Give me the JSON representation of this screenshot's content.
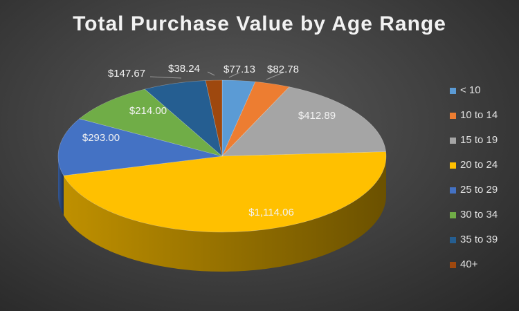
{
  "chart_data": {
    "type": "pie",
    "title": "Total Purchase Value by Age Range",
    "categories": [
      "< 10",
      "10 to 14",
      "15 to 19",
      "20 to 24",
      "25 to 29",
      "30 to 34",
      "35 to 39",
      "40+"
    ],
    "values": [
      77.13,
      82.78,
      412.89,
      1114.06,
      293.0,
      214.0,
      147.67,
      38.24
    ],
    "labels": [
      "$77.13",
      "$82.78",
      "$412.89",
      "$1,114.06",
      "$293.00",
      "$214.00",
      "$147.67",
      "$38.24"
    ],
    "colors": [
      "#5b9bd5",
      "#ed7d31",
      "#a5a5a5",
      "#ffc000",
      "#4472c4",
      "#70ad47",
      "#255e91",
      "#9e480e"
    ],
    "legend": "right"
  }
}
